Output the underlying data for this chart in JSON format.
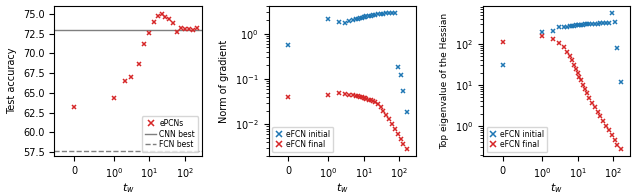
{
  "plot1": {
    "xlabel": "$t_w$",
    "ylabel": "Test accuracy",
    "cnn_best": 72.9,
    "fcn_best": 57.6,
    "epfcns_x": [
      0,
      1,
      2,
      3,
      5,
      7,
      10,
      13,
      17,
      22,
      28,
      36,
      46,
      60,
      78,
      100,
      130,
      170,
      220
    ],
    "epfcns_y": [
      63.2,
      64.4,
      66.5,
      67.0,
      68.7,
      71.2,
      72.6,
      74.0,
      74.7,
      75.0,
      74.6,
      74.3,
      73.8,
      72.7,
      73.2,
      73.1,
      73.1,
      73.0,
      73.2
    ],
    "color_epfcns": "#d62728",
    "color_cnn": "#7f7f7f",
    "color_fcn": "#7f7f7f",
    "ylim": [
      57.0,
      76.0
    ],
    "yticks": [
      57.5,
      60.0,
      62.5,
      65.0,
      67.5,
      70.0,
      72.5,
      75.0
    ]
  },
  "plot2": {
    "xlabel": "$t_w$",
    "ylabel": "Norm of gradient",
    "initial_x": [
      0,
      1,
      2,
      3,
      4,
      5,
      6,
      7,
      8,
      9,
      10,
      11,
      12,
      14,
      16,
      18,
      21,
      25,
      30,
      36,
      43,
      52,
      63,
      76,
      91,
      110,
      130,
      160
    ],
    "initial_y": [
      0.55,
      2.1,
      1.85,
      1.75,
      1.9,
      2.0,
      2.05,
      2.1,
      2.2,
      2.25,
      2.3,
      2.35,
      2.4,
      2.45,
      2.5,
      2.55,
      2.6,
      2.65,
      2.7,
      2.75,
      2.8,
      2.85,
      2.9,
      2.9,
      0.18,
      0.12,
      0.055,
      0.019
    ],
    "final_x": [
      0,
      1,
      2,
      3,
      4,
      5,
      6,
      7,
      8,
      9,
      10,
      11,
      12,
      14,
      16,
      18,
      21,
      25,
      30,
      36,
      43,
      52,
      63,
      76,
      91,
      110,
      130,
      160
    ],
    "final_y": [
      0.04,
      0.045,
      0.048,
      0.046,
      0.044,
      0.043,
      0.042,
      0.041,
      0.04,
      0.039,
      0.038,
      0.037,
      0.036,
      0.035,
      0.034,
      0.033,
      0.031,
      0.028,
      0.024,
      0.02,
      0.016,
      0.013,
      0.01,
      0.008,
      0.0062,
      0.0048,
      0.0037,
      0.0028
    ],
    "color_initial": "#1f77b4",
    "color_final": "#d62728"
  },
  "plot3": {
    "xlabel": "$t_w$",
    "ylabel": "Top eigenvalue of the Hessian",
    "initial_x": [
      0,
      1,
      2,
      3,
      4,
      5,
      6,
      7,
      8,
      9,
      10,
      11,
      12,
      14,
      16,
      18,
      21,
      25,
      30,
      36,
      43,
      52,
      63,
      76,
      91,
      110,
      130,
      160
    ],
    "initial_y": [
      30,
      195,
      210,
      265,
      255,
      260,
      270,
      275,
      280,
      285,
      290,
      290,
      295,
      298,
      300,
      302,
      305,
      308,
      310,
      315,
      318,
      320,
      325,
      330,
      580,
      350,
      80,
      12
    ],
    "final_x": [
      0,
      1,
      2,
      3,
      4,
      5,
      6,
      7,
      8,
      9,
      10,
      11,
      12,
      14,
      16,
      18,
      21,
      25,
      30,
      36,
      43,
      52,
      63,
      76,
      91,
      110,
      130,
      160
    ],
    "final_y": [
      110,
      155,
      130,
      105,
      85,
      65,
      52,
      40,
      31,
      25,
      20,
      16,
      13,
      10,
      8.0,
      6.2,
      4.8,
      3.7,
      2.9,
      2.2,
      1.7,
      1.3,
      1.0,
      0.78,
      0.6,
      0.46,
      0.35,
      0.27
    ],
    "color_initial": "#1f77b4",
    "color_final": "#d62728"
  }
}
